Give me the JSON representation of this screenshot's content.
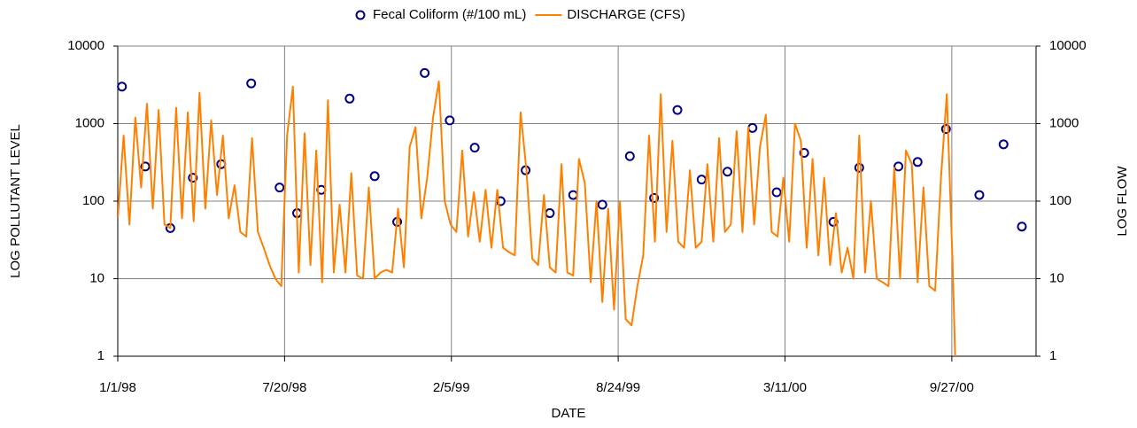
{
  "chart_data": {
    "type": "scatter",
    "xlabel": "DATE",
    "ylabel": "LOG POLLUTANT LEVEL",
    "y2label": "LOG FLOW",
    "xlim": [
      "1998-01-01",
      "2001-01-06"
    ],
    "xticks": [
      {
        "value": "1998-01-01",
        "label": "1/1/98"
      },
      {
        "value": "1998-07-20",
        "label": "7/20/98"
      },
      {
        "value": "1999-02-05",
        "label": "2/5/99"
      },
      {
        "value": "1999-08-24",
        "label": "8/24/99"
      },
      {
        "value": "2000-03-11",
        "label": "3/11/00"
      },
      {
        "value": "2000-09-27",
        "label": "9/27/00"
      }
    ],
    "ylim": [
      1,
      10000
    ],
    "yticks": [
      1,
      10,
      100,
      1000,
      10000
    ],
    "y2lim": [
      1,
      10000
    ],
    "y2ticks": [
      1,
      10,
      100,
      1000,
      10000
    ],
    "ylog": true,
    "y2log": true,
    "grid": true,
    "legend": "top",
    "series": [
      {
        "name": "Fecal Coliform (#/100 mL)",
        "type": "scatter",
        "color": "#000080",
        "x": [
          "1998-01-06",
          "1998-02-03",
          "1998-03-05",
          "1998-04-01",
          "1998-05-05",
          "1998-06-10",
          "1998-07-14",
          "1998-08-04",
          "1998-09-02",
          "1998-10-06",
          "1998-11-05",
          "1998-12-02",
          "1999-01-04",
          "1999-02-03",
          "1999-03-05",
          "1999-04-05",
          "1999-05-05",
          "1999-06-03",
          "1999-07-01",
          "1999-08-05",
          "1999-09-07",
          "1999-10-06",
          "1999-11-03",
          "1999-12-02",
          "2000-01-02",
          "2000-02-01",
          "2000-03-01",
          "2000-04-03",
          "2000-05-08",
          "2000-06-08",
          "2000-07-25",
          "2000-08-17",
          "2000-09-20",
          "2000-10-30",
          "2000-11-28",
          "2000-12-20"
        ],
        "values": [
          3000,
          280,
          45,
          200,
          300,
          3300,
          150,
          70,
          140,
          2100,
          210,
          54,
          4500,
          1100,
          490,
          100,
          250,
          70,
          120,
          90,
          380,
          110,
          1500,
          190,
          240,
          880,
          130,
          420,
          54,
          270,
          280,
          320,
          850,
          120,
          540,
          47
        ]
      },
      {
        "name": "DISCHARGE (CFS)",
        "type": "line",
        "color": "#ff8000",
        "axis": "y2",
        "x": [
          "1998-01-01",
          "1998-01-08",
          "1998-01-15",
          "1998-01-22",
          "1998-01-29",
          "1998-02-05",
          "1998-02-12",
          "1998-02-19",
          "1998-02-26",
          "1998-03-05",
          "1998-03-12",
          "1998-03-19",
          "1998-03-26",
          "1998-04-02",
          "1998-04-09",
          "1998-04-16",
          "1998-04-23",
          "1998-04-30",
          "1998-05-07",
          "1998-05-14",
          "1998-05-21",
          "1998-05-28",
          "1998-06-04",
          "1998-06-11",
          "1998-06-18",
          "1998-06-25",
          "1998-07-02",
          "1998-07-09",
          "1998-07-16",
          "1998-07-23",
          "1998-07-30",
          "1998-08-06",
          "1998-08-13",
          "1998-08-20",
          "1998-08-27",
          "1998-09-03",
          "1998-09-10",
          "1998-09-17",
          "1998-09-24",
          "1998-10-01",
          "1998-10-08",
          "1998-10-15",
          "1998-10-22",
          "1998-10-29",
          "1998-11-05",
          "1998-11-12",
          "1998-11-19",
          "1998-11-26",
          "1998-12-03",
          "1998-12-10",
          "1998-12-17",
          "1998-12-24",
          "1998-12-31",
          "1999-01-07",
          "1999-01-14",
          "1999-01-21",
          "1999-01-28",
          "1999-02-04",
          "1999-02-11",
          "1999-02-18",
          "1999-02-25",
          "1999-03-04",
          "1999-03-11",
          "1999-03-18",
          "1999-03-25",
          "1999-04-01",
          "1999-04-08",
          "1999-04-15",
          "1999-04-22",
          "1999-04-29",
          "1999-05-06",
          "1999-05-13",
          "1999-05-20",
          "1999-05-27",
          "1999-06-03",
          "1999-06-10",
          "1999-06-17",
          "1999-06-24",
          "1999-07-01",
          "1999-07-08",
          "1999-07-15",
          "1999-07-22",
          "1999-07-29",
          "1999-08-05",
          "1999-08-12",
          "1999-08-19",
          "1999-08-26",
          "1999-09-02",
          "1999-09-09",
          "1999-09-16",
          "1999-09-23",
          "1999-09-30",
          "1999-10-07",
          "1999-10-14",
          "1999-10-21",
          "1999-10-28",
          "1999-11-04",
          "1999-11-11",
          "1999-11-18",
          "1999-11-25",
          "1999-12-02",
          "1999-12-09",
          "1999-12-16",
          "1999-12-23",
          "1999-12-30",
          "2000-01-06",
          "2000-01-13",
          "2000-01-20",
          "2000-01-27",
          "2000-02-03",
          "2000-02-10",
          "2000-02-17",
          "2000-02-24",
          "2000-03-02",
          "2000-03-09",
          "2000-03-16",
          "2000-03-23",
          "2000-03-30",
          "2000-04-06",
          "2000-04-13",
          "2000-04-20",
          "2000-04-27",
          "2000-05-04",
          "2000-05-11",
          "2000-05-18",
          "2000-05-25",
          "2000-06-01",
          "2000-06-08",
          "2000-06-15",
          "2000-06-22",
          "2000-06-29",
          "2000-07-06",
          "2000-07-13",
          "2000-07-20",
          "2000-07-27",
          "2000-08-03",
          "2000-08-10",
          "2000-08-17",
          "2000-08-24",
          "2000-08-31",
          "2000-09-07",
          "2000-09-14",
          "2000-09-21",
          "2000-09-28",
          "2000-10-01"
        ],
        "values": [
          60,
          700,
          50,
          1200,
          150,
          1800,
          80,
          1500,
          50,
          45,
          1600,
          60,
          1400,
          55,
          2500,
          80,
          1100,
          120,
          700,
          60,
          160,
          40,
          35,
          650,
          40,
          25,
          15,
          10,
          8,
          700,
          3000,
          12,
          750,
          15,
          450,
          9,
          2000,
          12,
          90,
          12,
          230,
          11,
          10,
          150,
          10,
          12,
          13,
          12,
          80,
          14,
          500,
          900,
          60,
          200,
          1200,
          3500,
          100,
          50,
          40,
          450,
          35,
          130,
          30,
          140,
          25,
          140,
          25,
          22,
          20,
          1400,
          250,
          18,
          15,
          120,
          14,
          12,
          300,
          12,
          11,
          350,
          170,
          9,
          100,
          5,
          80,
          4,
          100,
          3,
          2.5,
          8,
          20,
          700,
          30,
          2400,
          40,
          600,
          30,
          25,
          250,
          25,
          30,
          300,
          30,
          650,
          40,
          50,
          800,
          40,
          900,
          50,
          500,
          1300,
          40,
          35,
          200,
          30,
          1000,
          600,
          25,
          350,
          20,
          200,
          15,
          70,
          12,
          25,
          10,
          700,
          12,
          100,
          10,
          9,
          8,
          270,
          10,
          450,
          300,
          9,
          150,
          8,
          7,
          200,
          2400,
          15,
          1
        ]
      }
    ]
  }
}
